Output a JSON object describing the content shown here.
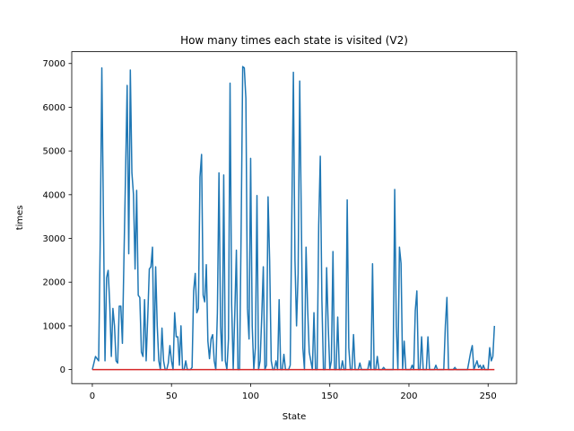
{
  "chart_data": {
    "type": "line",
    "title": "How many times each state is visited (V2)",
    "xlabel": "State",
    "ylabel": "times",
    "xlim": [
      -13,
      268
    ],
    "ylim": [
      -320,
      7270
    ],
    "xticks": [
      0,
      50,
      100,
      150,
      200,
      250
    ],
    "yticks": [
      0,
      1000,
      2000,
      3000,
      4000,
      5000,
      6000,
      7000
    ],
    "grid": false,
    "legend": "none",
    "series": [
      {
        "color": "#1f77b4",
        "points": [
          [
            0,
            0
          ],
          [
            1,
            150
          ],
          [
            2,
            300
          ],
          [
            3,
            250
          ],
          [
            4,
            200
          ],
          [
            5,
            3000
          ],
          [
            6,
            6900
          ],
          [
            7,
            3500
          ],
          [
            8,
            200
          ],
          [
            9,
            2100
          ],
          [
            10,
            2270
          ],
          [
            11,
            1500
          ],
          [
            12,
            300
          ],
          [
            13,
            1400
          ],
          [
            14,
            1000
          ],
          [
            15,
            200
          ],
          [
            16,
            150
          ],
          [
            17,
            1450
          ],
          [
            18,
            1450
          ],
          [
            19,
            600
          ],
          [
            20,
            2600
          ],
          [
            21,
            4500
          ],
          [
            22,
            6500
          ],
          [
            23,
            2650
          ],
          [
            24,
            6850
          ],
          [
            25,
            4500
          ],
          [
            26,
            4000
          ],
          [
            27,
            2300
          ],
          [
            28,
            4100
          ],
          [
            29,
            1700
          ],
          [
            30,
            1650
          ],
          [
            31,
            400
          ],
          [
            32,
            300
          ],
          [
            33,
            1600
          ],
          [
            34,
            200
          ],
          [
            35,
            1200
          ],
          [
            36,
            2300
          ],
          [
            37,
            2350
          ],
          [
            38,
            2800
          ],
          [
            39,
            200
          ],
          [
            40,
            2350
          ],
          [
            41,
            1000
          ],
          [
            42,
            200
          ],
          [
            43,
            0
          ],
          [
            44,
            950
          ],
          [
            45,
            200
          ],
          [
            46,
            0
          ],
          [
            47,
            0
          ],
          [
            48,
            150
          ],
          [
            49,
            550
          ],
          [
            50,
            200
          ],
          [
            51,
            0
          ],
          [
            52,
            1300
          ],
          [
            53,
            750
          ],
          [
            54,
            750
          ],
          [
            55,
            100
          ],
          [
            56,
            1000
          ],
          [
            57,
            0
          ],
          [
            58,
            0
          ],
          [
            59,
            200
          ],
          [
            60,
            0
          ],
          [
            61,
            0
          ],
          [
            62,
            0
          ],
          [
            63,
            50
          ],
          [
            64,
            1800
          ],
          [
            65,
            2200
          ],
          [
            66,
            1300
          ],
          [
            67,
            1400
          ],
          [
            68,
            4400
          ],
          [
            69,
            4920
          ],
          [
            70,
            1700
          ],
          [
            71,
            1550
          ],
          [
            72,
            2400
          ],
          [
            73,
            650
          ],
          [
            74,
            250
          ],
          [
            75,
            700
          ],
          [
            76,
            800
          ],
          [
            77,
            200
          ],
          [
            78,
            0
          ],
          [
            79,
            1300
          ],
          [
            80,
            4500
          ],
          [
            81,
            1000
          ],
          [
            82,
            200
          ],
          [
            83,
            4450
          ],
          [
            84,
            200
          ],
          [
            85,
            0
          ],
          [
            86,
            700
          ],
          [
            87,
            6550
          ],
          [
            88,
            1500
          ],
          [
            89,
            0
          ],
          [
            90,
            1300
          ],
          [
            91,
            2730
          ],
          [
            92,
            0
          ],
          [
            93,
            0
          ],
          [
            94,
            3200
          ],
          [
            95,
            6930
          ],
          [
            96,
            6900
          ],
          [
            97,
            6200
          ],
          [
            98,
            1400
          ],
          [
            99,
            700
          ],
          [
            100,
            4830
          ],
          [
            101,
            1000
          ],
          [
            102,
            0
          ],
          [
            103,
            500
          ],
          [
            104,
            3980
          ],
          [
            105,
            0
          ],
          [
            106,
            200
          ],
          [
            107,
            1200
          ],
          [
            108,
            2350
          ],
          [
            109,
            0
          ],
          [
            110,
            100
          ],
          [
            111,
            3950
          ],
          [
            112,
            2500
          ],
          [
            113,
            200
          ],
          [
            114,
            0
          ],
          [
            115,
            0
          ],
          [
            116,
            200
          ],
          [
            117,
            0
          ],
          [
            118,
            1600
          ],
          [
            119,
            0
          ],
          [
            120,
            0
          ],
          [
            121,
            350
          ],
          [
            122,
            0
          ],
          [
            123,
            0
          ],
          [
            124,
            0
          ],
          [
            125,
            100
          ],
          [
            126,
            3500
          ],
          [
            127,
            6800
          ],
          [
            128,
            2500
          ],
          [
            129,
            1000
          ],
          [
            130,
            2200
          ],
          [
            131,
            6600
          ],
          [
            132,
            3500
          ],
          [
            133,
            500
          ],
          [
            134,
            0
          ],
          [
            135,
            2800
          ],
          [
            136,
            1400
          ],
          [
            137,
            400
          ],
          [
            138,
            200
          ],
          [
            139,
            0
          ],
          [
            140,
            1300
          ],
          [
            141,
            0
          ],
          [
            142,
            0
          ],
          [
            143,
            3300
          ],
          [
            144,
            4880
          ],
          [
            145,
            1600
          ],
          [
            146,
            0
          ],
          [
            147,
            0
          ],
          [
            148,
            2330
          ],
          [
            149,
            1000
          ],
          [
            150,
            0
          ],
          [
            151,
            200
          ],
          [
            152,
            2700
          ],
          [
            153,
            0
          ],
          [
            154,
            0
          ],
          [
            155,
            1200
          ],
          [
            156,
            0
          ],
          [
            157,
            0
          ],
          [
            158,
            200
          ],
          [
            159,
            0
          ],
          [
            160,
            0
          ],
          [
            161,
            3880
          ],
          [
            162,
            500
          ],
          [
            163,
            0
          ],
          [
            164,
            0
          ],
          [
            165,
            800
          ],
          [
            166,
            0
          ],
          [
            167,
            0
          ],
          [
            168,
            0
          ],
          [
            169,
            150
          ],
          [
            170,
            0
          ],
          [
            171,
            0
          ],
          [
            172,
            0
          ],
          [
            173,
            0
          ],
          [
            174,
            0
          ],
          [
            175,
            200
          ],
          [
            176,
            0
          ],
          [
            177,
            2420
          ],
          [
            178,
            0
          ],
          [
            179,
            0
          ],
          [
            180,
            300
          ],
          [
            181,
            0
          ],
          [
            182,
            0
          ],
          [
            183,
            0
          ],
          [
            184,
            50
          ],
          [
            185,
            0
          ],
          [
            186,
            0
          ],
          [
            187,
            0
          ],
          [
            188,
            0
          ],
          [
            189,
            0
          ],
          [
            190,
            0
          ],
          [
            191,
            4120
          ],
          [
            192,
            1000
          ],
          [
            193,
            0
          ],
          [
            194,
            2800
          ],
          [
            195,
            2430
          ],
          [
            196,
            0
          ],
          [
            197,
            650
          ],
          [
            198,
            0
          ],
          [
            199,
            0
          ],
          [
            200,
            0
          ],
          [
            201,
            0
          ],
          [
            202,
            100
          ],
          [
            203,
            0
          ],
          [
            204,
            1350
          ],
          [
            205,
            1800
          ],
          [
            206,
            0
          ],
          [
            207,
            0
          ],
          [
            208,
            750
          ],
          [
            209,
            0
          ],
          [
            210,
            0
          ],
          [
            211,
            0
          ],
          [
            212,
            750
          ],
          [
            213,
            0
          ],
          [
            214,
            0
          ],
          [
            215,
            0
          ],
          [
            216,
            0
          ],
          [
            217,
            100
          ],
          [
            218,
            0
          ],
          [
            219,
            0
          ],
          [
            220,
            0
          ],
          [
            221,
            0
          ],
          [
            222,
            0
          ],
          [
            223,
            1000
          ],
          [
            224,
            1650
          ],
          [
            225,
            0
          ],
          [
            226,
            0
          ],
          [
            227,
            0
          ],
          [
            228,
            0
          ],
          [
            229,
            50
          ],
          [
            230,
            0
          ],
          [
            231,
            0
          ],
          [
            232,
            0
          ],
          [
            233,
            0
          ],
          [
            234,
            0
          ],
          [
            235,
            0
          ],
          [
            236,
            0
          ],
          [
            237,
            0
          ],
          [
            238,
            200
          ],
          [
            239,
            400
          ],
          [
            240,
            550
          ],
          [
            241,
            0
          ],
          [
            242,
            100
          ],
          [
            243,
            200
          ],
          [
            244,
            50
          ],
          [
            245,
            100
          ],
          [
            246,
            0
          ],
          [
            247,
            100
          ],
          [
            248,
            0
          ],
          [
            249,
            0
          ],
          [
            250,
            0
          ],
          [
            251,
            500
          ],
          [
            252,
            200
          ],
          [
            253,
            300
          ],
          [
            254,
            1000
          ]
        ]
      },
      {
        "color": "#d62728",
        "points": [
          [
            0,
            0
          ],
          [
            254,
            0
          ]
        ]
      }
    ]
  }
}
